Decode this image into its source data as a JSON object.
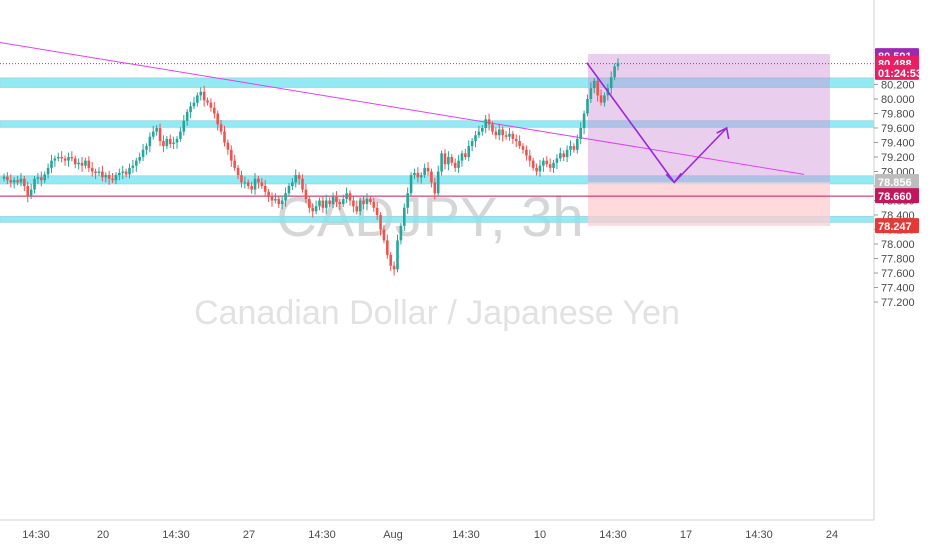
{
  "symbol_watermark": "CADJPY, 3h",
  "description_watermark": "Canadian Dollar / Japanese Yen",
  "colors": {
    "up": "#26a69a",
    "down": "#ef5350",
    "zone_fill": "#7fe6f2",
    "trendline": "#e040fb",
    "target_box": "#ce93d8",
    "stop_box": "#ffcdd2",
    "projection": "#9c27e0"
  },
  "price_tags": [
    {
      "label": "80.591",
      "value": 80.591,
      "color": "#9c27b0"
    },
    {
      "label": "80.488",
      "value": 80.488,
      "color": "#e91e63"
    },
    {
      "label": "01:24:53",
      "value": 80.36,
      "color": "#e91e63"
    },
    {
      "label": "78.856",
      "value": 78.856,
      "color": "#bdbdbd"
    },
    {
      "label": "78.660",
      "value": 78.66,
      "color": "#c2185b"
    },
    {
      "label": "78.247",
      "value": 78.247,
      "color": "#e53935"
    }
  ],
  "chart_data": {
    "type": "candlestick",
    "title": "CADJPY, 3h",
    "subtitle": "Canadian Dollar / Japanese Yen",
    "y_ticks": [
      "80.200",
      "80.000",
      "79.800",
      "79.600",
      "79.400",
      "79.200",
      "79.000",
      "78.800",
      "78.600",
      "78.400",
      "78.200",
      "78.000",
      "77.800",
      "77.600",
      "77.400",
      "77.200"
    ],
    "x_ticks": [
      "14:30",
      "20",
      "14:30",
      "27",
      "14:30",
      "Aug",
      "14:30",
      "10",
      "14:30",
      "17",
      "14:30",
      "24"
    ],
    "ylim": [
      77.1,
      80.75
    ],
    "grid": false,
    "series": [
      {
        "values": [
          78.93,
          78.88,
          78.85,
          78.88,
          78.85,
          78.9,
          78.8,
          78.66,
          78.75,
          78.9,
          78.92,
          78.88,
          78.96,
          79.05,
          79.15,
          79.18,
          79.2,
          79.18,
          79.15,
          79.2,
          79.18,
          79.1,
          79.12,
          79.08,
          79.15,
          79.05,
          79.0,
          78.98,
          79.0,
          78.92,
          78.95,
          78.9,
          78.88,
          78.95,
          78.98,
          79.0,
          78.96,
          79.05,
          79.08,
          79.15,
          79.2,
          79.3,
          79.35,
          79.48,
          79.55,
          79.6,
          79.42,
          79.35,
          79.45,
          79.38,
          79.4,
          79.45,
          79.55,
          79.7,
          79.82,
          79.9,
          79.95,
          80.05,
          80.1,
          79.98,
          79.95,
          79.88,
          79.8,
          79.65,
          79.55,
          79.4,
          79.3,
          79.15,
          79.05,
          78.95,
          78.85,
          78.85,
          78.8,
          78.75,
          78.9,
          78.85,
          78.8,
          78.72,
          78.65,
          78.6,
          78.62,
          78.55,
          78.6,
          78.7,
          78.8,
          78.85,
          78.95,
          78.9,
          78.75,
          78.62,
          78.5,
          78.45,
          78.52,
          78.6,
          78.5,
          78.6,
          78.55,
          78.65,
          78.58,
          78.55,
          78.62,
          78.7,
          78.6,
          78.52,
          78.45,
          78.6,
          78.55,
          78.62,
          78.58,
          78.5,
          78.4,
          78.2,
          78.05,
          77.85,
          77.7,
          77.65,
          78.05,
          78.25,
          78.5,
          78.7,
          78.95,
          78.98,
          78.92,
          78.95,
          79.05,
          79.0,
          78.85,
          78.7,
          79.0,
          79.25,
          79.1,
          79.2,
          79.12,
          79.05,
          79.15,
          79.25,
          79.2,
          79.35,
          79.42,
          79.5,
          79.55,
          79.6,
          79.72,
          79.65,
          79.55,
          79.5,
          79.58,
          79.5,
          79.48,
          79.52,
          79.45,
          79.42,
          79.35,
          79.3,
          79.22,
          79.15,
          79.05,
          79.0,
          79.08,
          79.15,
          79.1,
          79.05,
          79.12,
          79.18,
          79.25,
          79.2,
          79.3,
          79.35,
          79.3,
          79.45,
          79.6,
          79.8,
          80.0,
          80.15,
          80.25,
          80.05,
          79.95,
          80.05,
          80.15,
          80.3,
          80.45,
          80.5
        ]
      }
    ],
    "zones": [
      {
        "from": 80.16,
        "to": 80.29
      },
      {
        "from": 79.61,
        "to": 79.7
      },
      {
        "from": 78.83,
        "to": 78.94
      },
      {
        "from": 78.3,
        "to": 78.38
      }
    ],
    "horizontal_lines": [
      78.66,
      80.488
    ],
    "trendline": {
      "from": [
        0,
        80.78
      ],
      "to": [
        0.92,
        78.96
      ]
    },
    "target_zone": {
      "top": 80.62,
      "bottom": 78.85
    },
    "stop_zone": {
      "top": 78.85,
      "bottom": 78.25
    },
    "projection": [
      [
        0.66,
        80.5
      ],
      [
        0.76,
        78.85
      ],
      [
        0.82,
        79.6
      ]
    ]
  }
}
